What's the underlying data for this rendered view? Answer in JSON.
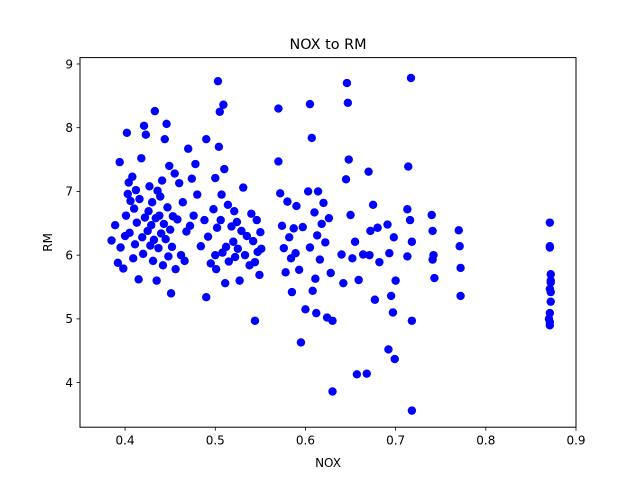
{
  "chart_data": {
    "type": "scatter",
    "title": "NOX to RM",
    "xlabel": "NOX",
    "ylabel": "RM",
    "xlim": [
      0.35,
      0.9
    ],
    "ylim": [
      3.3,
      9.1
    ],
    "xticks": [
      "0.4",
      "0.5",
      "0.6",
      "0.7",
      "0.8",
      "0.9"
    ],
    "yticks": [
      "4",
      "5",
      "6",
      "7",
      "8",
      "9"
    ],
    "grid": false,
    "legend": "none",
    "marker_color": "#0000ff",
    "series": [
      {
        "points": [
          [
            0.385,
            6.23
          ],
          [
            0.389,
            6.47
          ],
          [
            0.392,
            5.88
          ],
          [
            0.394,
            7.46
          ],
          [
            0.395,
            6.12
          ],
          [
            0.398,
            5.79
          ],
          [
            0.4,
            6.3
          ],
          [
            0.401,
            6.62
          ],
          [
            0.402,
            7.92
          ],
          [
            0.403,
            6.96
          ],
          [
            0.404,
            7.14
          ],
          [
            0.405,
            6.35
          ],
          [
            0.406,
            6.85
          ],
          [
            0.408,
            7.23
          ],
          [
            0.409,
            5.95
          ],
          [
            0.41,
            6.73
          ],
          [
            0.411,
            6.17
          ],
          [
            0.412,
            7.02
          ],
          [
            0.413,
            6.51
          ],
          [
            0.415,
            5.62
          ],
          [
            0.416,
            6.88
          ],
          [
            0.418,
            7.52
          ],
          [
            0.419,
            6.28
          ],
          [
            0.42,
            6.02
          ],
          [
            0.421,
            8.03
          ],
          [
            0.422,
            6.59
          ],
          [
            0.423,
            7.89
          ],
          [
            0.425,
            6.38
          ],
          [
            0.426,
            6.69
          ],
          [
            0.427,
            7.08
          ],
          [
            0.428,
            6.15
          ],
          [
            0.429,
            6.47
          ],
          [
            0.43,
            6.83
          ],
          [
            0.431,
            5.91
          ],
          [
            0.432,
            6.24
          ],
          [
            0.433,
            8.26
          ],
          [
            0.434,
            6.58
          ],
          [
            0.435,
            5.6
          ],
          [
            0.436,
            7.01
          ],
          [
            0.437,
            6.11
          ],
          [
            0.438,
            6.62
          ],
          [
            0.439,
            6.92
          ],
          [
            0.44,
            6.34
          ],
          [
            0.441,
            7.17
          ],
          [
            0.442,
            5.84
          ],
          [
            0.443,
            6.49
          ],
          [
            0.444,
            7.82
          ],
          [
            0.445,
            6.25
          ],
          [
            0.446,
            8.06
          ],
          [
            0.447,
            6.75
          ],
          [
            0.448,
            5.98
          ],
          [
            0.449,
            7.4
          ],
          [
            0.45,
            6.4
          ],
          [
            0.451,
            5.4
          ],
          [
            0.452,
            6.13
          ],
          [
            0.453,
            6.61
          ],
          [
            0.455,
            7.28
          ],
          [
            0.456,
            5.78
          ],
          [
            0.458,
            6.56
          ],
          [
            0.46,
            7.13
          ],
          [
            0.462,
            6.0
          ],
          [
            0.464,
            6.83
          ],
          [
            0.466,
            5.91
          ],
          [
            0.468,
            6.37
          ],
          [
            0.47,
            7.67
          ],
          [
            0.472,
            6.46
          ],
          [
            0.474,
            7.2
          ],
          [
            0.476,
            6.62
          ],
          [
            0.478,
            7.43
          ],
          [
            0.48,
            6.95
          ],
          [
            0.484,
            6.14
          ],
          [
            0.488,
            6.55
          ],
          [
            0.49,
            7.82
          ],
          [
            0.49,
            5.34
          ],
          [
            0.492,
            6.29
          ],
          [
            0.495,
            5.87
          ],
          [
            0.498,
            6.72
          ],
          [
            0.5,
            7.21
          ],
          [
            0.5,
            6.0
          ],
          [
            0.501,
            5.78
          ],
          [
            0.502,
            6.43
          ],
          [
            0.503,
            8.73
          ],
          [
            0.504,
            7.7
          ],
          [
            0.505,
            8.25
          ],
          [
            0.506,
            6.55
          ],
          [
            0.507,
            6.95
          ],
          [
            0.508,
            6.04
          ],
          [
            0.509,
            8.36
          ],
          [
            0.51,
            7.35
          ],
          [
            0.511,
            5.56
          ],
          [
            0.512,
            6.13
          ],
          [
            0.514,
            6.79
          ],
          [
            0.515,
            5.9
          ],
          [
            0.518,
            6.45
          ],
          [
            0.52,
            6.21
          ],
          [
            0.521,
            6.69
          ],
          [
            0.522,
            5.97
          ],
          [
            0.524,
            6.52
          ],
          [
            0.525,
            6.1
          ],
          [
            0.527,
            5.6
          ],
          [
            0.529,
            6.38
          ],
          [
            0.531,
            7.06
          ],
          [
            0.533,
            6.0
          ],
          [
            0.535,
            6.3
          ],
          [
            0.538,
            5.84
          ],
          [
            0.54,
            6.65
          ],
          [
            0.542,
            6.22
          ],
          [
            0.544,
            5.89
          ],
          [
            0.544,
            4.97
          ],
          [
            0.546,
            6.55
          ],
          [
            0.547,
            6.05
          ],
          [
            0.549,
            5.69
          ],
          [
            0.55,
            6.36
          ],
          [
            0.551,
            6.1
          ],
          [
            0.57,
            8.3
          ],
          [
            0.57,
            7.47
          ],
          [
            0.572,
            6.97
          ],
          [
            0.574,
            6.46
          ],
          [
            0.576,
            6.11
          ],
          [
            0.578,
            5.73
          ],
          [
            0.58,
            6.84
          ],
          [
            0.582,
            6.28
          ],
          [
            0.584,
            5.95
          ],
          [
            0.585,
            5.42
          ],
          [
            0.587,
            6.42
          ],
          [
            0.589,
            6.03
          ],
          [
            0.59,
            6.77
          ],
          [
            0.593,
            5.77
          ],
          [
            0.595,
            4.63
          ],
          [
            0.597,
            6.44
          ],
          [
            0.6,
            5.15
          ],
          [
            0.603,
            7.0
          ],
          [
            0.605,
            8.37
          ],
          [
            0.605,
            6.12
          ],
          [
            0.607,
            7.84
          ],
          [
            0.608,
            5.44
          ],
          [
            0.61,
            6.67
          ],
          [
            0.611,
            5.63
          ],
          [
            0.612,
            5.09
          ],
          [
            0.613,
            6.31
          ],
          [
            0.614,
            7.0
          ],
          [
            0.616,
            5.93
          ],
          [
            0.618,
            6.49
          ],
          [
            0.62,
            6.82
          ],
          [
            0.622,
            6.2
          ],
          [
            0.624,
            5.02
          ],
          [
            0.626,
            6.58
          ],
          [
            0.628,
            5.72
          ],
          [
            0.63,
            4.97
          ],
          [
            0.63,
            3.86
          ],
          [
            0.64,
            6.01
          ],
          [
            0.642,
            5.56
          ],
          [
            0.645,
            7.19
          ],
          [
            0.646,
            8.7
          ],
          [
            0.647,
            8.39
          ],
          [
            0.648,
            7.5
          ],
          [
            0.65,
            6.63
          ],
          [
            0.652,
            5.95
          ],
          [
            0.655,
            6.21
          ],
          [
            0.657,
            4.13
          ],
          [
            0.659,
            5.61
          ],
          [
            0.664,
            6.01
          ],
          [
            0.668,
            4.14
          ],
          [
            0.67,
            7.31
          ],
          [
            0.671,
            6.0
          ],
          [
            0.672,
            6.38
          ],
          [
            0.675,
            6.79
          ],
          [
            0.677,
            5.3
          ],
          [
            0.68,
            6.43
          ],
          [
            0.682,
            5.89
          ],
          [
            0.691,
            6.48
          ],
          [
            0.692,
            4.52
          ],
          [
            0.693,
            6.03
          ],
          [
            0.695,
            5.36
          ],
          [
            0.697,
            5.1
          ],
          [
            0.698,
            6.28
          ],
          [
            0.699,
            4.37
          ],
          [
            0.7,
            5.6
          ],
          [
            0.713,
            6.72
          ],
          [
            0.713,
            5.98
          ],
          [
            0.714,
            7.39
          ],
          [
            0.716,
            6.55
          ],
          [
            0.717,
            8.78
          ],
          [
            0.718,
            6.21
          ],
          [
            0.718,
            3.56
          ],
          [
            0.718,
            4.97
          ],
          [
            0.74,
            6.63
          ],
          [
            0.741,
            6.38
          ],
          [
            0.741,
            5.93
          ],
          [
            0.742,
            6.0
          ],
          [
            0.743,
            5.64
          ],
          [
            0.77,
            6.39
          ],
          [
            0.771,
            6.14
          ],
          [
            0.772,
            5.8
          ],
          [
            0.772,
            5.36
          ],
          [
            0.871,
            6.51
          ],
          [
            0.871,
            6.14
          ],
          [
            0.872,
            5.7
          ],
          [
            0.871,
            5.47
          ],
          [
            0.872,
            5.27
          ],
          [
            0.87,
            5.0
          ],
          [
            0.871,
            4.9
          ],
          [
            0.871,
            5.09
          ],
          [
            0.872,
            5.6
          ],
          [
            0.871,
            6.12
          ],
          [
            0.872,
            5.42
          ],
          [
            0.871,
            4.95
          ],
          [
            0.872,
            5.57
          ]
        ]
      }
    ]
  }
}
